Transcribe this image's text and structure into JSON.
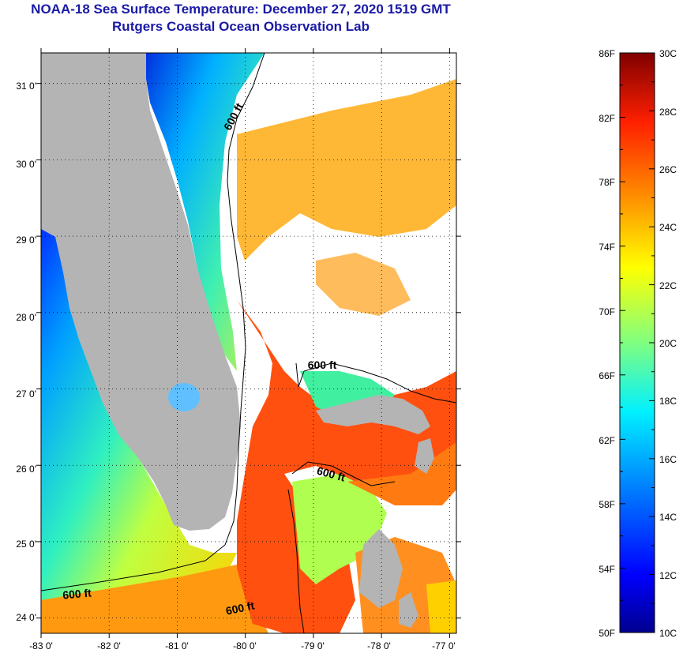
{
  "header": {
    "title": "NOAA-18 Sea Surface Temperature:  December 27, 2020 1519 GMT",
    "subtitle": "Rutgers Coastal Ocean Observation Lab"
  },
  "axes": {
    "latitudes": [
      "31 0'",
      "30 0'",
      "29 0'",
      "28 0'",
      "27 0'",
      "26 0'",
      "25 0'",
      "24 0'"
    ],
    "longitudes": [
      "-83 0'",
      "-82 0'",
      "-81 0'",
      "-80 0'",
      "-79 0'",
      "-78 0'",
      "-77 0'"
    ],
    "lat_range": [
      23.8,
      31.4
    ],
    "lon_range": [
      -83,
      -76.9
    ]
  },
  "contours": {
    "label": "600 ft",
    "labels": [
      "600 ft",
      "600 ft",
      "600 ft",
      "600 ft",
      "600 ft"
    ]
  },
  "colorbar": {
    "fahrenheit": [
      "86F",
      "82F",
      "78F",
      "74F",
      "70F",
      "66F",
      "62F",
      "58F",
      "54F",
      "50F"
    ],
    "celsius": [
      "30C",
      "28C",
      "26C",
      "24C",
      "22C",
      "20C",
      "18C",
      "16C",
      "14C",
      "12C",
      "10C"
    ],
    "range_c": [
      10,
      30
    ],
    "range_f": [
      50,
      86
    ]
  },
  "colors": {
    "title": "#1a1aa6",
    "land": "#b4b4b4",
    "no_data": "#ffffff"
  }
}
